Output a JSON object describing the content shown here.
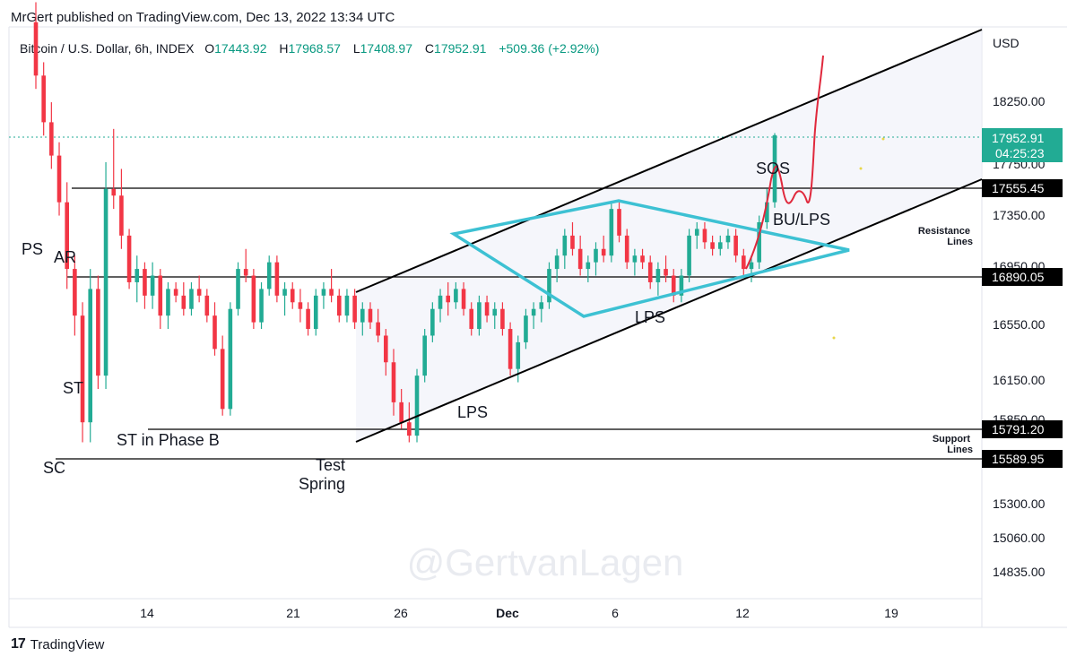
{
  "header": {
    "publisher_line": "MrGert published on TradingView.com, Dec 13, 2022 13:34 UTC"
  },
  "symbol_bar": {
    "title": "Bitcoin / U.S. Dollar, 6h, INDEX",
    "o_label": "O",
    "o_value": "17443.92",
    "h_label": "H",
    "h_value": "17968.57",
    "l_label": "L",
    "l_value": "17408.97",
    "c_label": "C",
    "c_value": "17952.91",
    "change": "+509.36 (+2.92%)"
  },
  "footer": {
    "brand": "TradingView"
  },
  "watermark": "@GertvanLagen",
  "colors": {
    "up": "#22ab94",
    "down": "#f23645",
    "channel": "#000000",
    "triangle": "#3dc1d3",
    "sketch": "#e0283c",
    "accent_badge": "#22ab94"
  },
  "chart_data": {
    "type": "candlestick",
    "y_axis": {
      "currency": "USD",
      "tick_labels": [
        "18250.00",
        "17750.00",
        "17350.00",
        "16950.00",
        "16550.00",
        "16150.00",
        "15850.00",
        "15300.00",
        "15060.00",
        "14835.00"
      ]
    },
    "x_axis": {
      "tick_labels": [
        "14",
        "21",
        "26",
        "Dec",
        "6",
        "12",
        "19"
      ]
    },
    "last_price": {
      "value": "17952.91",
      "countdown": "04:25:23"
    },
    "horizontal_lines": [
      {
        "label": "17555.45",
        "price": 17555.45
      },
      {
        "label": "16890.05",
        "price": 16890.05
      },
      {
        "label": "15791.20",
        "price": 15791.2
      },
      {
        "label": "15589.95",
        "price": 15589.95
      }
    ],
    "line_group_labels": {
      "resistance": [
        "Resistance",
        "Lines"
      ],
      "support": [
        "Support",
        "Lines"
      ]
    },
    "annotations": [
      "PS",
      "AR",
      "ST",
      "SC",
      "ST in Phase B",
      "Test",
      "Spring",
      "LPS",
      "LPS",
      "SOS",
      "BU/LPS"
    ],
    "candles_ohlc": [
      [
        18800,
        18950,
        18300,
        18400
      ],
      [
        18400,
        18500,
        17950,
        18050
      ],
      [
        18050,
        18200,
        17700,
        17800
      ],
      [
        17800,
        17900,
        17350,
        17450
      ],
      [
        17450,
        17600,
        16800,
        16950
      ],
      [
        16950,
        17050,
        16450,
        16600
      ],
      [
        16600,
        16700,
        15650,
        15800
      ],
      [
        15800,
        16950,
        15650,
        16800
      ],
      [
        16800,
        16900,
        16050,
        16150
      ],
      [
        16150,
        17750,
        16050,
        17550
      ],
      [
        17550,
        18000,
        17400,
        17500
      ],
      [
        17500,
        17700,
        17100,
        17200
      ],
      [
        17200,
        17250,
        16800,
        16850
      ],
      [
        16850,
        17050,
        16700,
        16950
      ],
      [
        16950,
        17000,
        16650,
        16750
      ],
      [
        16750,
        17000,
        16650,
        16900
      ],
      [
        16900,
        16950,
        16500,
        16600
      ],
      [
        16600,
        16850,
        16500,
        16800
      ],
      [
        16800,
        16850,
        16700,
        16750
      ],
      [
        16750,
        16850,
        16600,
        16650
      ],
      [
        16650,
        16850,
        16600,
        16800
      ],
      [
        16800,
        16900,
        16700,
        16750
      ],
      [
        16750,
        16800,
        16550,
        16600
      ],
      [
        16600,
        16700,
        16300,
        16350
      ],
      [
        16350,
        16450,
        15850,
        15900
      ],
      [
        15900,
        16700,
        15850,
        16650
      ],
      [
        16650,
        17000,
        16600,
        16950
      ],
      [
        16950,
        17100,
        16850,
        16900
      ],
      [
        16900,
        16950,
        16500,
        16550
      ],
      [
        16550,
        16850,
        16500,
        16800
      ],
      [
        16800,
        17050,
        16750,
        17000
      ],
      [
        17000,
        17050,
        16700,
        16750
      ],
      [
        16750,
        16850,
        16600,
        16800
      ],
      [
        16800,
        16850,
        16650,
        16700
      ],
      [
        16700,
        16800,
        16550,
        16650
      ],
      [
        16650,
        16700,
        16450,
        16500
      ],
      [
        16500,
        16800,
        16450,
        16750
      ],
      [
        16750,
        16850,
        16650,
        16800
      ],
      [
        16800,
        16950,
        16700,
        16750
      ],
      [
        16750,
        16800,
        16550,
        16600
      ],
      [
        16600,
        16800,
        16550,
        16750
      ],
      [
        16750,
        16800,
        16500,
        16550
      ],
      [
        16550,
        16700,
        16450,
        16650
      ],
      [
        16650,
        16700,
        16500,
        16550
      ],
      [
        16550,
        16650,
        16400,
        16450
      ],
      [
        16450,
        16500,
        16150,
        16250
      ],
      [
        16250,
        16350,
        15850,
        15950
      ],
      [
        15950,
        16050,
        15750,
        15800
      ],
      [
        15800,
        15950,
        15650,
        15700
      ],
      [
        15700,
        16200,
        15650,
        16150
      ],
      [
        16150,
        16500,
        16100,
        16450
      ],
      [
        16450,
        16700,
        16400,
        16650
      ],
      [
        16650,
        16800,
        16550,
        16750
      ],
      [
        16750,
        16850,
        16600,
        16700
      ],
      [
        16700,
        16850,
        16650,
        16800
      ],
      [
        16800,
        16850,
        16600,
        16650
      ],
      [
        16650,
        16700,
        16450,
        16500
      ],
      [
        16500,
        16750,
        16450,
        16700
      ],
      [
        16700,
        16750,
        16550,
        16600
      ],
      [
        16600,
        16700,
        16500,
        16650
      ],
      [
        16650,
        16700,
        16450,
        16500
      ],
      [
        16500,
        16550,
        16150,
        16200
      ],
      [
        16200,
        16450,
        16100,
        16400
      ],
      [
        16400,
        16650,
        16350,
        16600
      ],
      [
        16600,
        16700,
        16500,
        16650
      ],
      [
        16650,
        16750,
        16550,
        16700
      ],
      [
        16700,
        17000,
        16650,
        16950
      ],
      [
        16950,
        17100,
        16850,
        17050
      ],
      [
        17050,
        17250,
        16950,
        17200
      ],
      [
        17200,
        17300,
        17050,
        17100
      ],
      [
        17100,
        17200,
        16900,
        16950
      ],
      [
        16950,
        17050,
        16850,
        17000
      ],
      [
        17000,
        17150,
        16900,
        17100
      ],
      [
        17100,
        17200,
        17000,
        17050
      ],
      [
        17050,
        17450,
        17000,
        17400
      ],
      [
        17400,
        17450,
        17150,
        17200
      ],
      [
        17200,
        17250,
        16950,
        17000
      ],
      [
        17000,
        17100,
        16900,
        17050
      ],
      [
        17050,
        17100,
        16950,
        17000
      ],
      [
        17000,
        17050,
        16800,
        16850
      ],
      [
        16850,
        17000,
        16750,
        16950
      ],
      [
        16950,
        17050,
        16850,
        16900
      ],
      [
        16900,
        16950,
        16700,
        16750
      ],
      [
        16750,
        16950,
        16700,
        16900
      ],
      [
        16900,
        17250,
        16850,
        17200
      ],
      [
        17200,
        17300,
        17100,
        17250
      ],
      [
        17250,
        17300,
        17100,
        17150
      ],
      [
        17150,
        17200,
        17050,
        17100
      ],
      [
        17100,
        17200,
        17050,
        17150
      ],
      [
        17150,
        17250,
        17100,
        17200
      ],
      [
        17200,
        17250,
        17000,
        17050
      ],
      [
        17050,
        17100,
        16900,
        16950
      ],
      [
        16950,
        17050,
        16850,
        17000
      ],
      [
        17000,
        17350,
        16950,
        17300
      ],
      [
        17300,
        17550,
        17250,
        17450
      ],
      [
        17450,
        17968.57,
        17408.97,
        17952.91
      ]
    ]
  }
}
